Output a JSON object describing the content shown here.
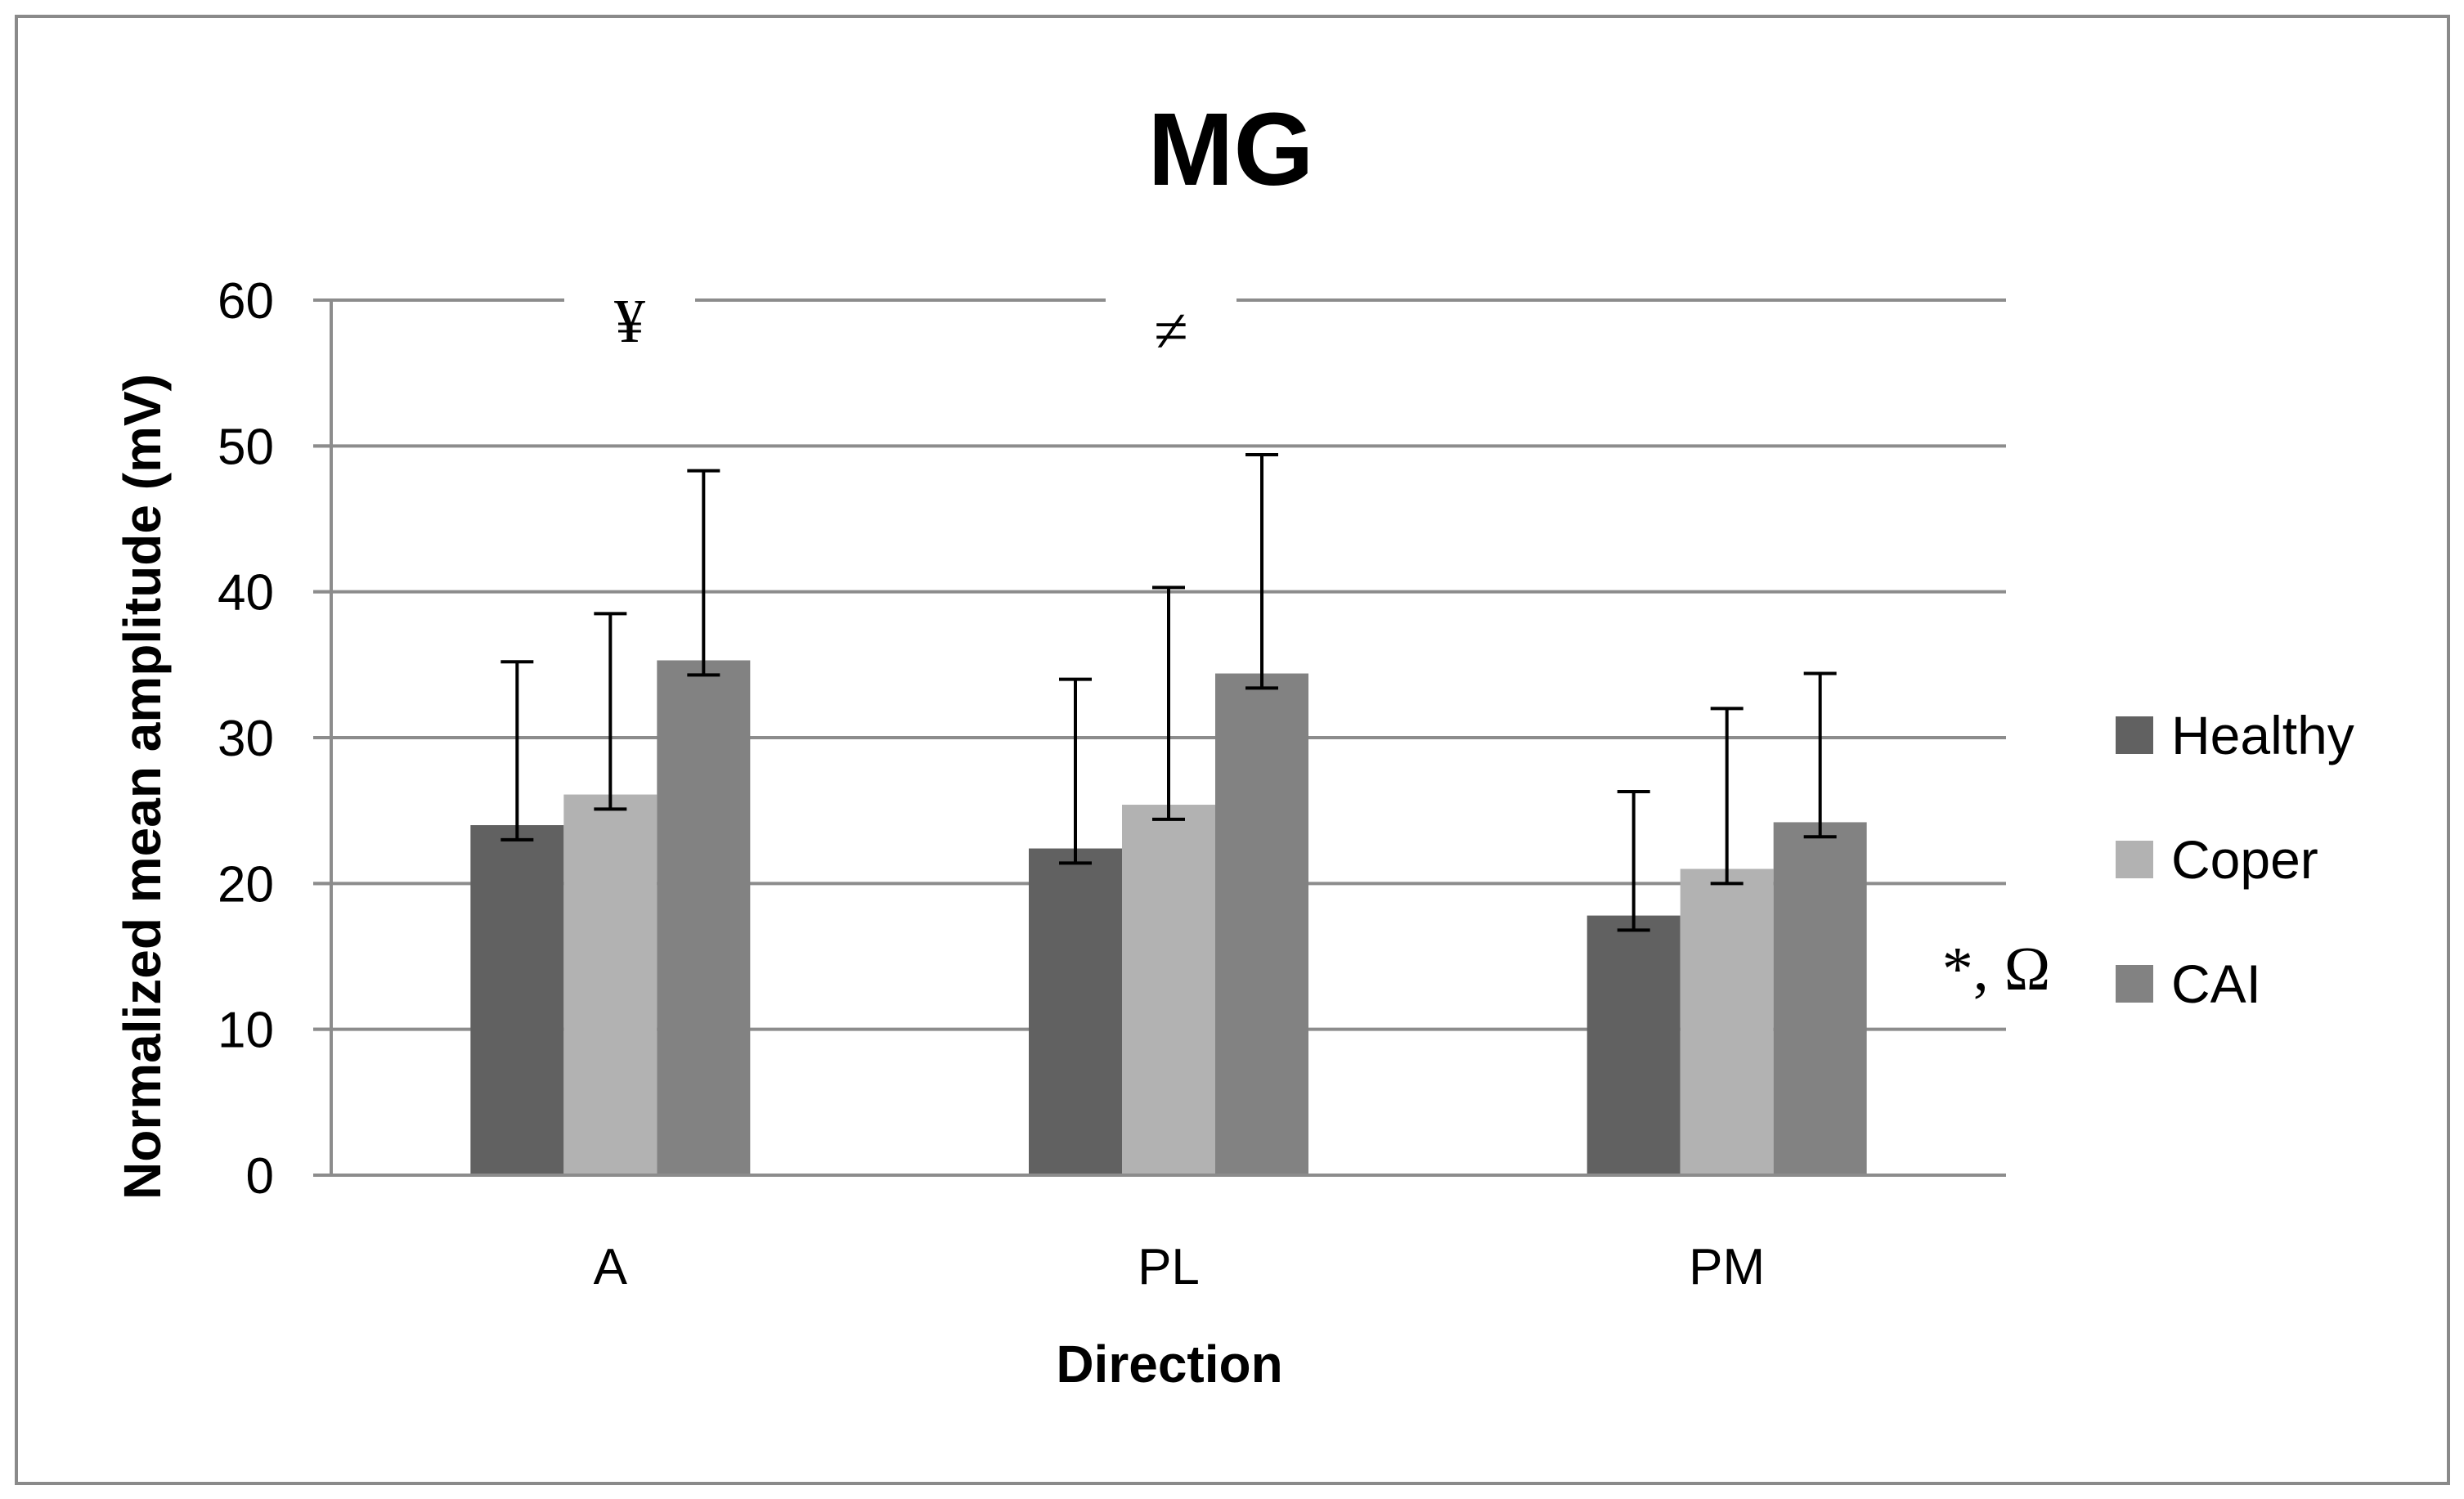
{
  "chart_data": {
    "type": "bar",
    "title": "MG",
    "xlabel": "Direction",
    "ylabel": "Normalized mean amplitude (mV)",
    "categories": [
      "A",
      "PL",
      "PM"
    ],
    "ylim": [
      0,
      60
    ],
    "yticks": [
      0,
      10,
      20,
      30,
      40,
      50,
      60
    ],
    "ytick_labels": [
      "0",
      "10",
      "20",
      "30",
      "40",
      "50",
      "60"
    ],
    "grid": true,
    "legend_position": "right",
    "series": [
      {
        "name": "Healthy",
        "values": [
          24.0,
          22.4,
          17.8
        ],
        "error_upper": [
          35.2,
          34.0,
          26.3
        ],
        "error_lower": [
          23.0,
          21.4,
          16.8
        ],
        "color": "#616161"
      },
      {
        "name": "Coper",
        "values": [
          26.1,
          25.4,
          21.0
        ],
        "error_upper": [
          38.5,
          40.3,
          32.0
        ],
        "error_lower": [
          25.1,
          24.4,
          20.0
        ],
        "color": "#b2b2b2"
      },
      {
        "name": "CAI",
        "values": [
          35.3,
          34.4,
          24.2
        ],
        "error_upper": [
          48.3,
          49.4,
          34.4
        ],
        "error_lower": [
          34.3,
          33.4,
          23.2
        ],
        "color": "#828282"
      }
    ],
    "annotations": [
      {
        "text": "¥",
        "near": "A"
      },
      {
        "text": "≠",
        "near": "PL"
      },
      {
        "text": "*, Ω",
        "near": "PM"
      }
    ]
  }
}
